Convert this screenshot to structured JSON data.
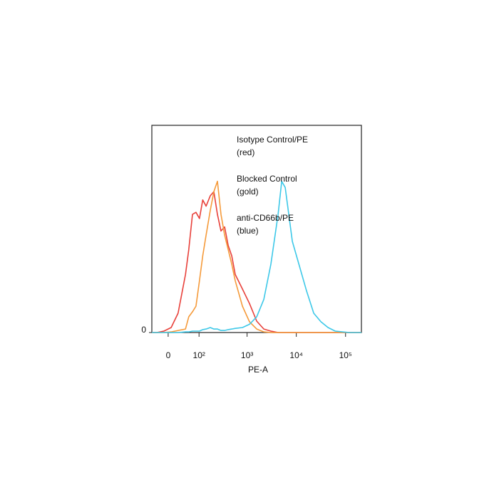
{
  "chart_data": {
    "type": "line",
    "x_label": "PE-A",
    "x_scale": "biexponential",
    "x": [
      -42,
      -28,
      -10,
      7,
      24,
      45,
      56,
      70,
      85,
      102,
      121,
      143,
      176,
      209,
      248,
      293,
      348,
      412,
      487,
      575,
      805,
      1120,
      1570,
      2190,
      3050,
      4270,
      5050,
      5960,
      7040,
      8320,
      11600,
      16200,
      22600,
      31600,
      44200,
      61700,
      86000,
      120000,
      210000
    ],
    "series": [
      {
        "name": "Isotype Control/PE",
        "color": "#e8403a",
        "values": [
          0,
          0,
          0.7,
          2.4,
          9.3,
          28,
          40,
          57,
          58,
          55,
          64,
          61,
          66,
          68,
          57,
          49,
          51,
          42,
          37,
          28,
          21,
          14,
          5.5,
          1.7,
          0.7,
          0,
          0,
          0,
          0,
          0,
          0,
          0,
          0,
          0,
          0,
          0,
          0,
          0,
          0
        ]
      },
      {
        "name": "Blocked Control",
        "color": "#f59a3a",
        "values": [
          0,
          0,
          0,
          0.3,
          1,
          1.7,
          7.6,
          10,
          12.7,
          25,
          37,
          47,
          59,
          68,
          73,
          57,
          47,
          40,
          33,
          25,
          12.7,
          5.2,
          1.7,
          0.3,
          0,
          0,
          0,
          0,
          0,
          0,
          0,
          0,
          0,
          0,
          0,
          0,
          0,
          0,
          0
        ]
      },
      {
        "name": "anti-CD66b/PE",
        "color": "#3dc8e8",
        "values": [
          0,
          0,
          0,
          0,
          0,
          0.3,
          0.3,
          0.7,
          0.7,
          0.7,
          1.4,
          1.7,
          2.4,
          1.7,
          1.7,
          1,
          1,
          1.4,
          1.7,
          2,
          2.4,
          4,
          7.6,
          16,
          33,
          57,
          73,
          70,
          57,
          44,
          32,
          20,
          9.3,
          5.2,
          2.4,
          0.7,
          0.3,
          0,
          0
        ]
      }
    ],
    "annotations": [
      "(red)",
      "(gold)",
      "(blue)"
    ],
    "xlim": [
      -42,
      210000
    ],
    "xticks": [
      0,
      {
        "value": 100,
        "label": "10²"
      },
      {
        "value": 1000,
        "label": "10³"
      },
      {
        "value": 10000,
        "label": "10⁴"
      },
      {
        "value": 100000,
        "label": "10⁵"
      }
    ],
    "ylim": [
      0,
      100
    ],
    "yticks": [
      0
    ]
  }
}
